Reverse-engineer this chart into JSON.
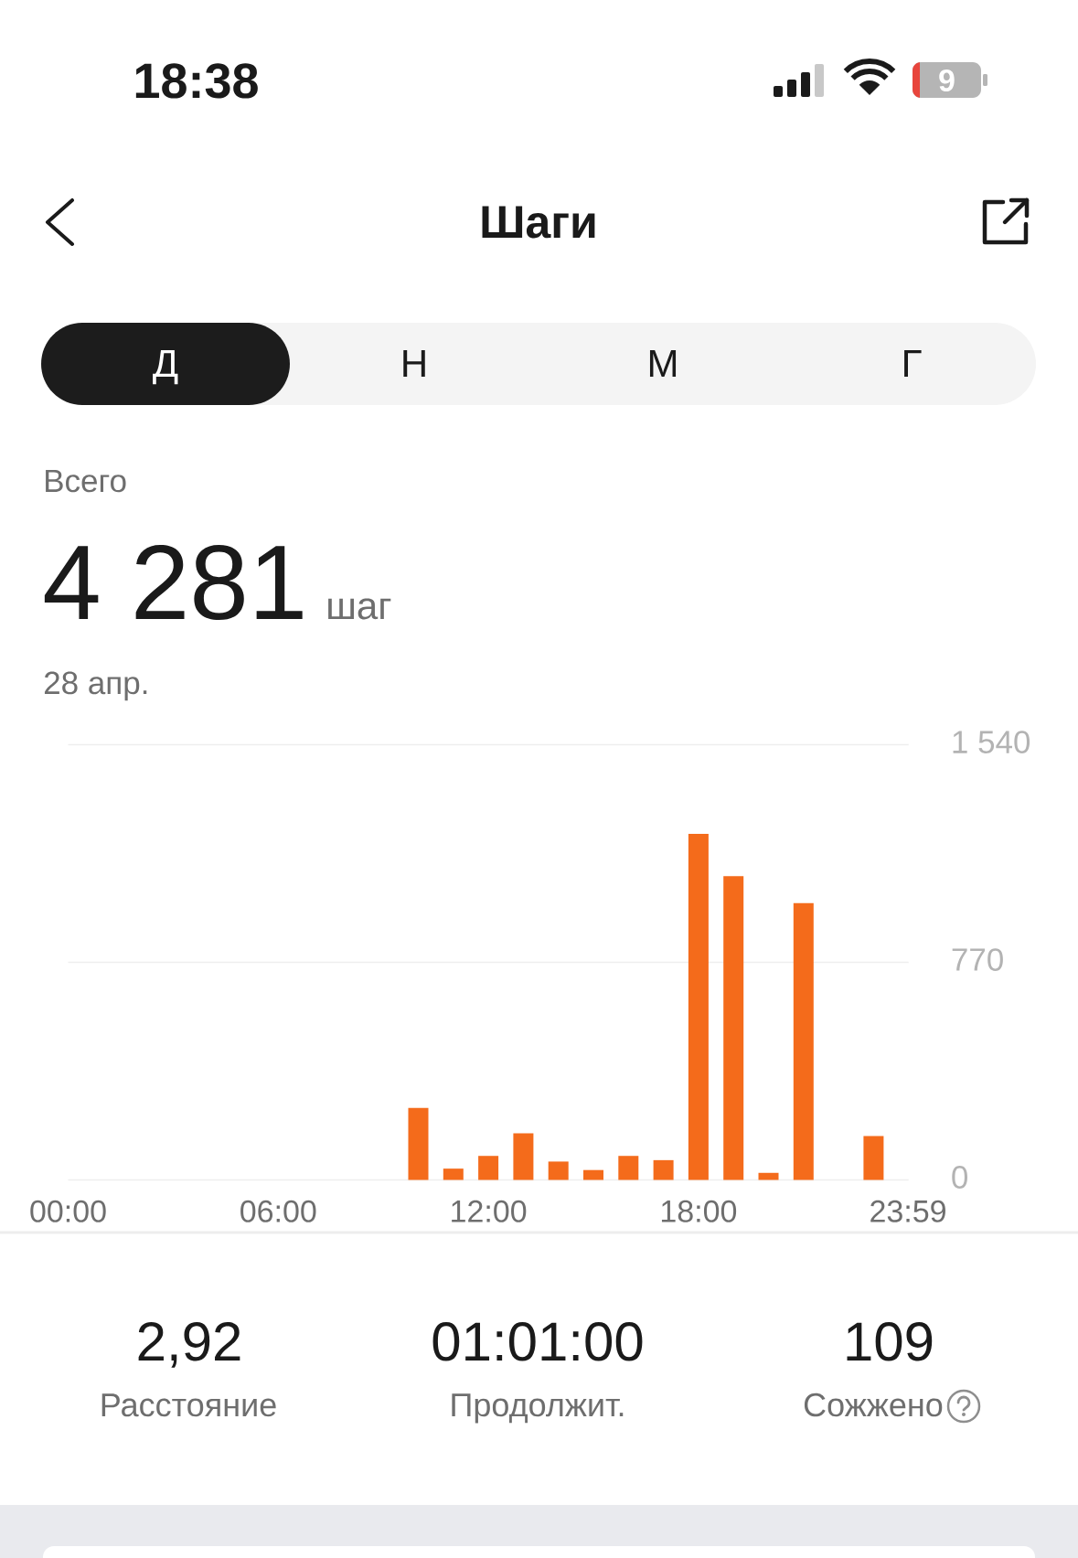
{
  "chart_data": {
    "type": "bar",
    "title": "Шаги",
    "x": [
      10,
      11,
      12,
      13,
      14,
      15,
      16,
      17,
      18,
      19,
      20,
      21,
      23
    ],
    "values": [
      255,
      40,
      85,
      165,
      65,
      35,
      85,
      70,
      1225,
      1075,
      25,
      980,
      155
    ],
    "color": "#f46b1b",
    "xlim": [
      0,
      24
    ],
    "xticks": [
      {
        "value": 0,
        "label": "00:00"
      },
      {
        "value": 6,
        "label": "06:00"
      },
      {
        "value": 12,
        "label": "12:00"
      },
      {
        "value": 18,
        "label": "18:00"
      },
      {
        "value": 23.983,
        "label": "23:59"
      }
    ],
    "ylim": [
      0,
      1540
    ],
    "yticks": [
      0,
      770,
      {
        "value": 1540,
        "label": "1 540"
      }
    ],
    "grid": "y",
    "annotations": [
      "18:38",
      "9",
      "Д",
      "Н",
      "М",
      "Г",
      "Всего",
      "4 281",
      "шаг",
      "28 апр.",
      "2,92",
      "Расстояние",
      "01:01:00",
      "Продолжит.",
      "109",
      "Сожжено"
    ]
  }
}
